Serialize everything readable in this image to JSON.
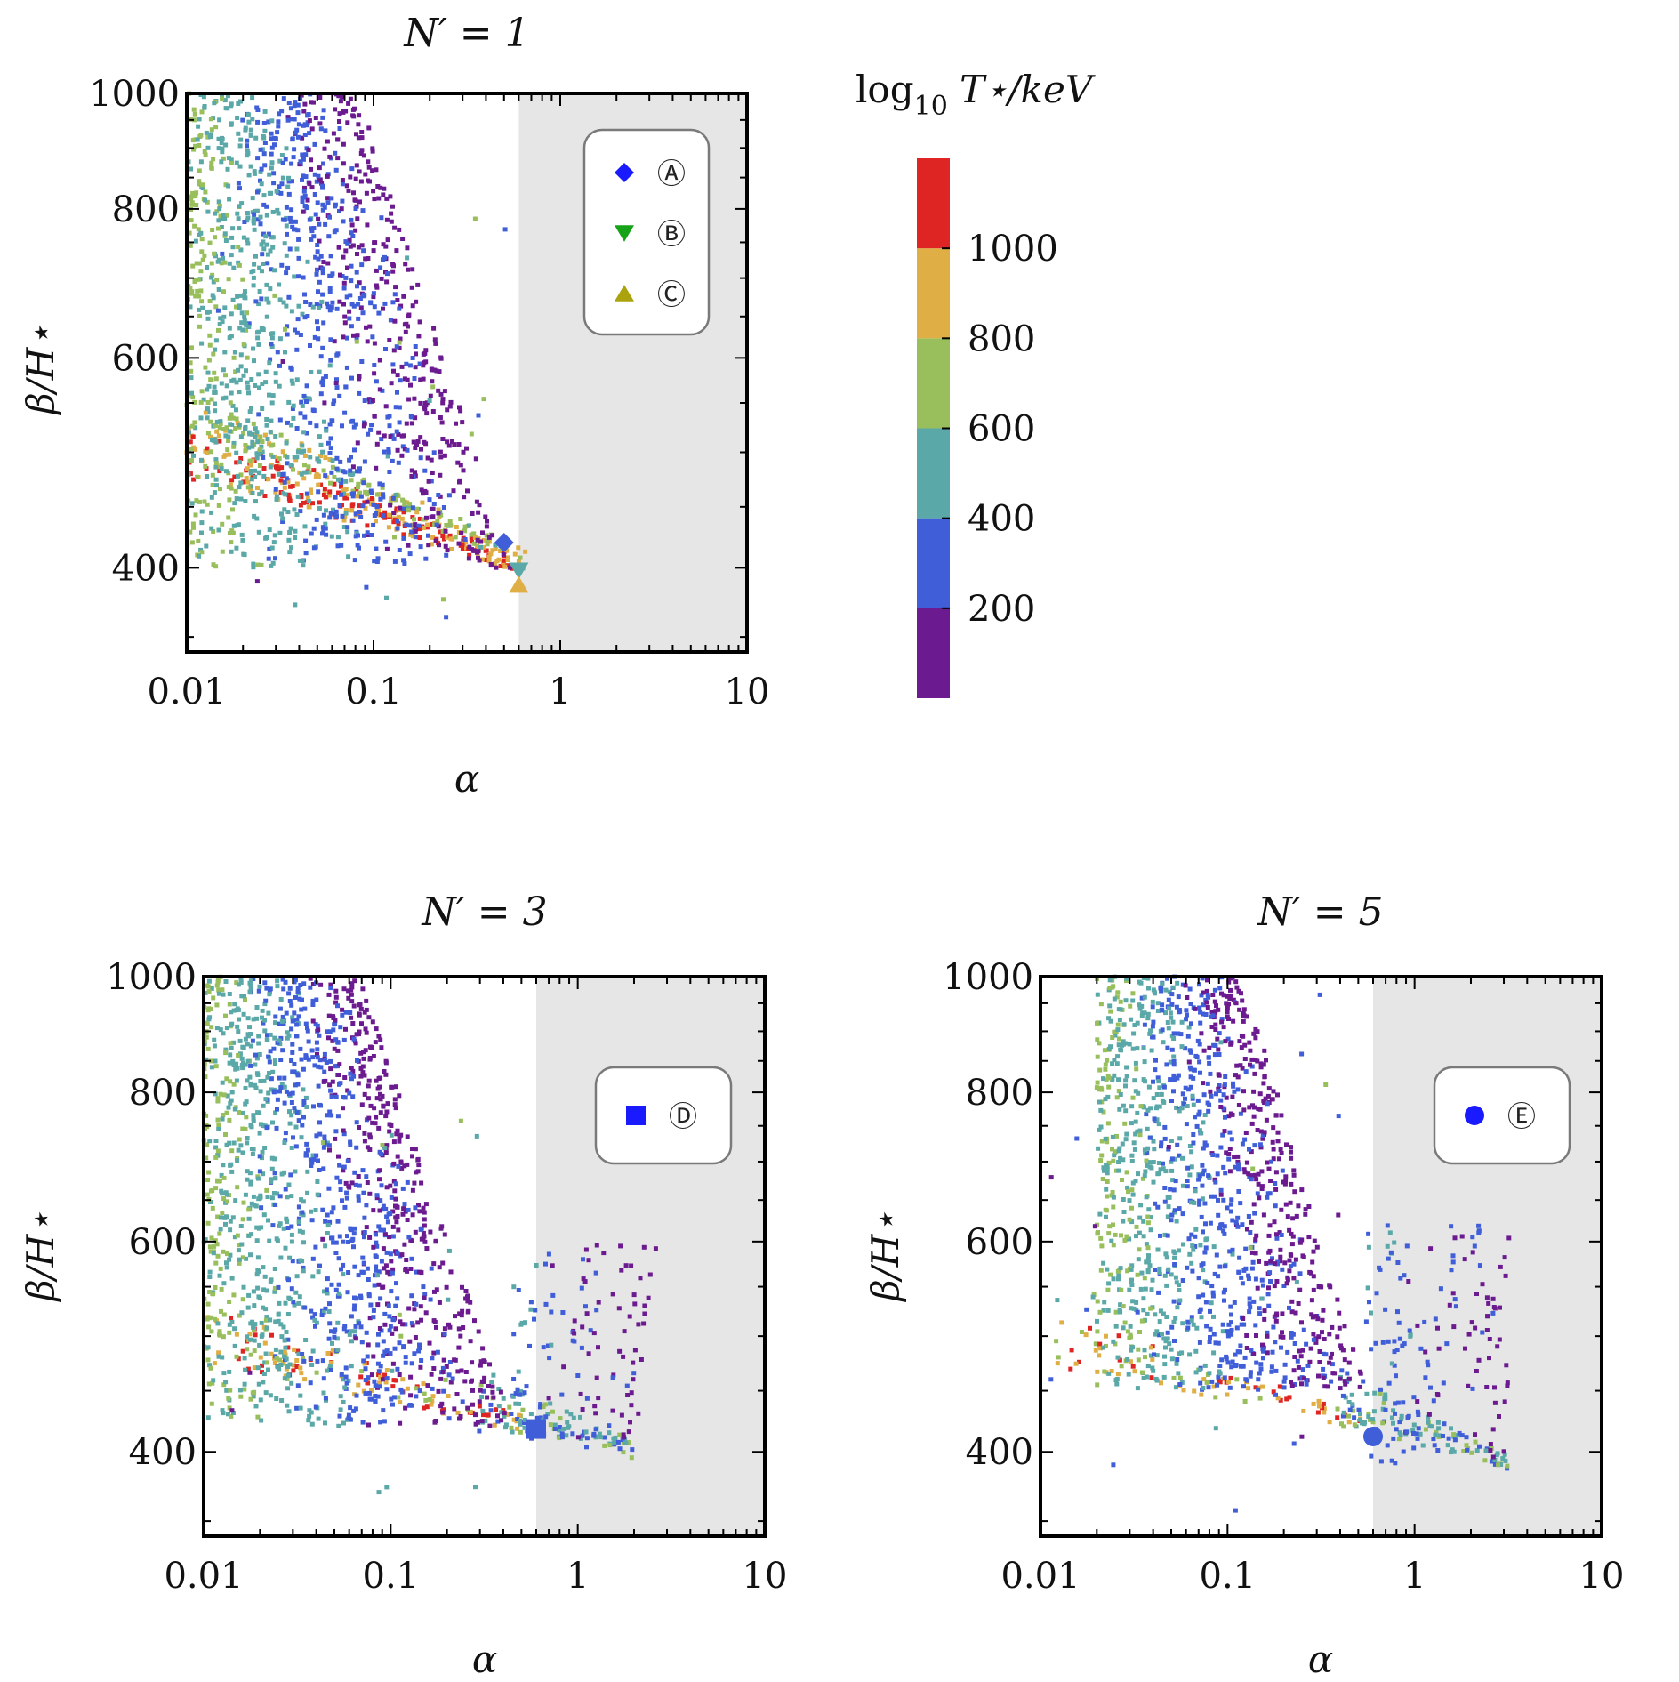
{
  "chart_data": [
    {
      "type": "scatter",
      "id": "N1",
      "title": "N′ = 1",
      "xlabel": "α",
      "ylabel": "β/H⋆",
      "xscale": "log",
      "yscale": "log",
      "xlim": [
        0.01,
        10
      ],
      "ylim": [
        340,
        1000
      ],
      "xticks": [
        {
          "v": 0.01,
          "label": "0.01"
        },
        {
          "v": 0.1,
          "label": "0.1"
        },
        {
          "v": 1,
          "label": "1"
        },
        {
          "v": 10,
          "label": "10"
        }
      ],
      "yticks": [
        {
          "v": 400,
          "label": "400"
        },
        {
          "v": 600,
          "label": "600"
        },
        {
          "v": 800,
          "label": "800"
        },
        {
          "v": 1000,
          "label": "1000"
        }
      ],
      "shaded_region_alpha_min": 0.6,
      "benchmarks": [
        {
          "label": "Ⓐ",
          "marker": "diamond",
          "alpha": 0.5,
          "beta": 420,
          "T": 260,
          "legend_color": "#1a1aff"
        },
        {
          "label": "Ⓑ",
          "marker": "triangle-down",
          "alpha": 0.6,
          "beta": 398,
          "T": 480,
          "legend_color": "#17a317"
        },
        {
          "label": "Ⓒ",
          "marker": "triangle-up",
          "alpha": 0.6,
          "beta": 387,
          "T": 930,
          "legend_color": "#aaa30d"
        }
      ],
      "clusters": [
        {
          "kind": "band",
          "n": 260,
          "alpha_range": [
            0.01,
            0.6
          ],
          "beta_start": [
            475,
            530
          ],
          "beta_end": [
            395,
            410
          ],
          "T": [
            800,
            1200
          ]
        },
        {
          "kind": "band",
          "n": 160,
          "alpha_range": [
            0.01,
            0.65
          ],
          "beta_start": [
            520,
            560
          ],
          "beta_end": [
            398,
            415
          ],
          "T": [
            500,
            900
          ]
        },
        {
          "kind": "diagonal",
          "n": 1500,
          "alpha_range": [
            0.01,
            0.55
          ],
          "beta_range": [
            400,
            1000
          ],
          "T": [
            40,
            650
          ]
        },
        {
          "kind": "uniform",
          "n": 40,
          "alpha_range": [
            0.012,
            0.55
          ],
          "beta_range": [
            360,
            800
          ],
          "T": [
            100,
            800
          ]
        }
      ]
    },
    {
      "type": "scatter",
      "id": "N3",
      "title": "N′ = 3",
      "xlabel": "α",
      "ylabel": "β/H⋆",
      "xscale": "log",
      "yscale": "log",
      "xlim": [
        0.01,
        10
      ],
      "ylim": [
        340,
        1000
      ],
      "xticks": [
        {
          "v": 0.01,
          "label": "0.01"
        },
        {
          "v": 0.1,
          "label": "0.1"
        },
        {
          "v": 1,
          "label": "1"
        },
        {
          "v": 10,
          "label": "10"
        }
      ],
      "yticks": [
        {
          "v": 400,
          "label": "400"
        },
        {
          "v": 600,
          "label": "600"
        },
        {
          "v": 800,
          "label": "800"
        },
        {
          "v": 1000,
          "label": "1000"
        }
      ],
      "shaded_region_alpha_min": 0.6,
      "benchmarks": [
        {
          "label": "Ⓓ",
          "marker": "square",
          "alpha": 0.6,
          "beta": 418,
          "T": 250,
          "legend_color": "#1a1aff"
        }
      ],
      "clusters": [
        {
          "kind": "band",
          "n": 130,
          "alpha_range": [
            0.01,
            0.6
          ],
          "beta_start": [
            475,
            530
          ],
          "beta_end": [
            410,
            425
          ],
          "T": [
            700,
            1150
          ]
        },
        {
          "kind": "band",
          "n": 110,
          "alpha_range": [
            0.3,
            2.0
          ],
          "beta_start": [
            420,
            470
          ],
          "beta_end": [
            395,
            410
          ],
          "T": [
            300,
            700
          ]
        },
        {
          "kind": "diagonal",
          "n": 1500,
          "alpha_range": [
            0.01,
            0.45
          ],
          "beta_range": [
            420,
            1000
          ],
          "T": [
            40,
            650
          ]
        },
        {
          "kind": "diagonal",
          "n": 120,
          "alpha_range": [
            0.45,
            2.0
          ],
          "beta_range": [
            400,
            600
          ],
          "T": [
            60,
            400
          ]
        },
        {
          "kind": "uniform",
          "n": 30,
          "alpha_range": [
            0.012,
            0.3
          ],
          "beta_range": [
            350,
            900
          ],
          "T": [
            100,
            700
          ]
        }
      ]
    },
    {
      "type": "scatter",
      "id": "N5",
      "title": "N′ = 5",
      "xlabel": "α",
      "ylabel": "β/H⋆",
      "xscale": "log",
      "yscale": "log",
      "xlim": [
        0.01,
        10
      ],
      "ylim": [
        340,
        1000
      ],
      "xticks": [
        {
          "v": 0.01,
          "label": "0.01"
        },
        {
          "v": 0.1,
          "label": "0.1"
        },
        {
          "v": 1,
          "label": "1"
        },
        {
          "v": 10,
          "label": "10"
        }
      ],
      "yticks": [
        {
          "v": 400,
          "label": "400"
        },
        {
          "v": 600,
          "label": "600"
        },
        {
          "v": 800,
          "label": "800"
        },
        {
          "v": 1000,
          "label": "1000"
        }
      ],
      "shaded_region_alpha_min": 0.6,
      "benchmarks": [
        {
          "label": "Ⓔ",
          "marker": "circle",
          "alpha": 0.6,
          "beta": 412,
          "T": 240,
          "legend_color": "#1a1aff"
        }
      ],
      "clusters": [
        {
          "kind": "band",
          "n": 90,
          "alpha_range": [
            0.012,
            0.6
          ],
          "beta_start": [
            470,
            520
          ],
          "beta_end": [
            415,
            430
          ],
          "T": [
            700,
            1150
          ]
        },
        {
          "kind": "band",
          "n": 110,
          "alpha_range": [
            0.4,
            3.2
          ],
          "beta_start": [
            420,
            470
          ],
          "beta_end": [
            385,
            400
          ],
          "T": [
            300,
            700
          ]
        },
        {
          "kind": "diagonal",
          "n": 1300,
          "alpha_range": [
            0.02,
            0.55
          ],
          "beta_range": [
            450,
            1000
          ],
          "T": [
            40,
            650
          ]
        },
        {
          "kind": "diagonal",
          "n": 150,
          "alpha_range": [
            0.55,
            3.2
          ],
          "beta_range": [
            390,
            620
          ],
          "T": [
            60,
            400
          ]
        },
        {
          "kind": "uniform",
          "n": 40,
          "alpha_range": [
            0.011,
            0.4
          ],
          "beta_range": [
            350,
            1000
          ],
          "T": [
            40,
            700
          ]
        }
      ]
    }
  ],
  "colorbar": {
    "title_prefix": "log",
    "title_sub": "10",
    "title_suffix": " T⋆/keV",
    "range": [
      0,
      1200
    ],
    "bins": [
      {
        "from": 0,
        "to": 200,
        "color": "#6c1a8f"
      },
      {
        "from": 200,
        "to": 400,
        "color": "#3f5ed8"
      },
      {
        "from": 400,
        "to": 600,
        "color": "#5ba8a8"
      },
      {
        "from": 600,
        "to": 800,
        "color": "#99bf5c"
      },
      {
        "from": 800,
        "to": 1000,
        "color": "#dfae45"
      },
      {
        "from": 1000,
        "to": 1200,
        "color": "#df2424"
      }
    ],
    "ticks": [
      {
        "v": 200,
        "label": "200"
      },
      {
        "v": 400,
        "label": "400"
      },
      {
        "v": 600,
        "label": "600"
      },
      {
        "v": 800,
        "label": "800"
      },
      {
        "v": 1000,
        "label": "1000"
      }
    ]
  },
  "colors": {
    "shade": "#e6e6e6",
    "frame": "#000000",
    "legend_border": "#7a7a7a"
  }
}
